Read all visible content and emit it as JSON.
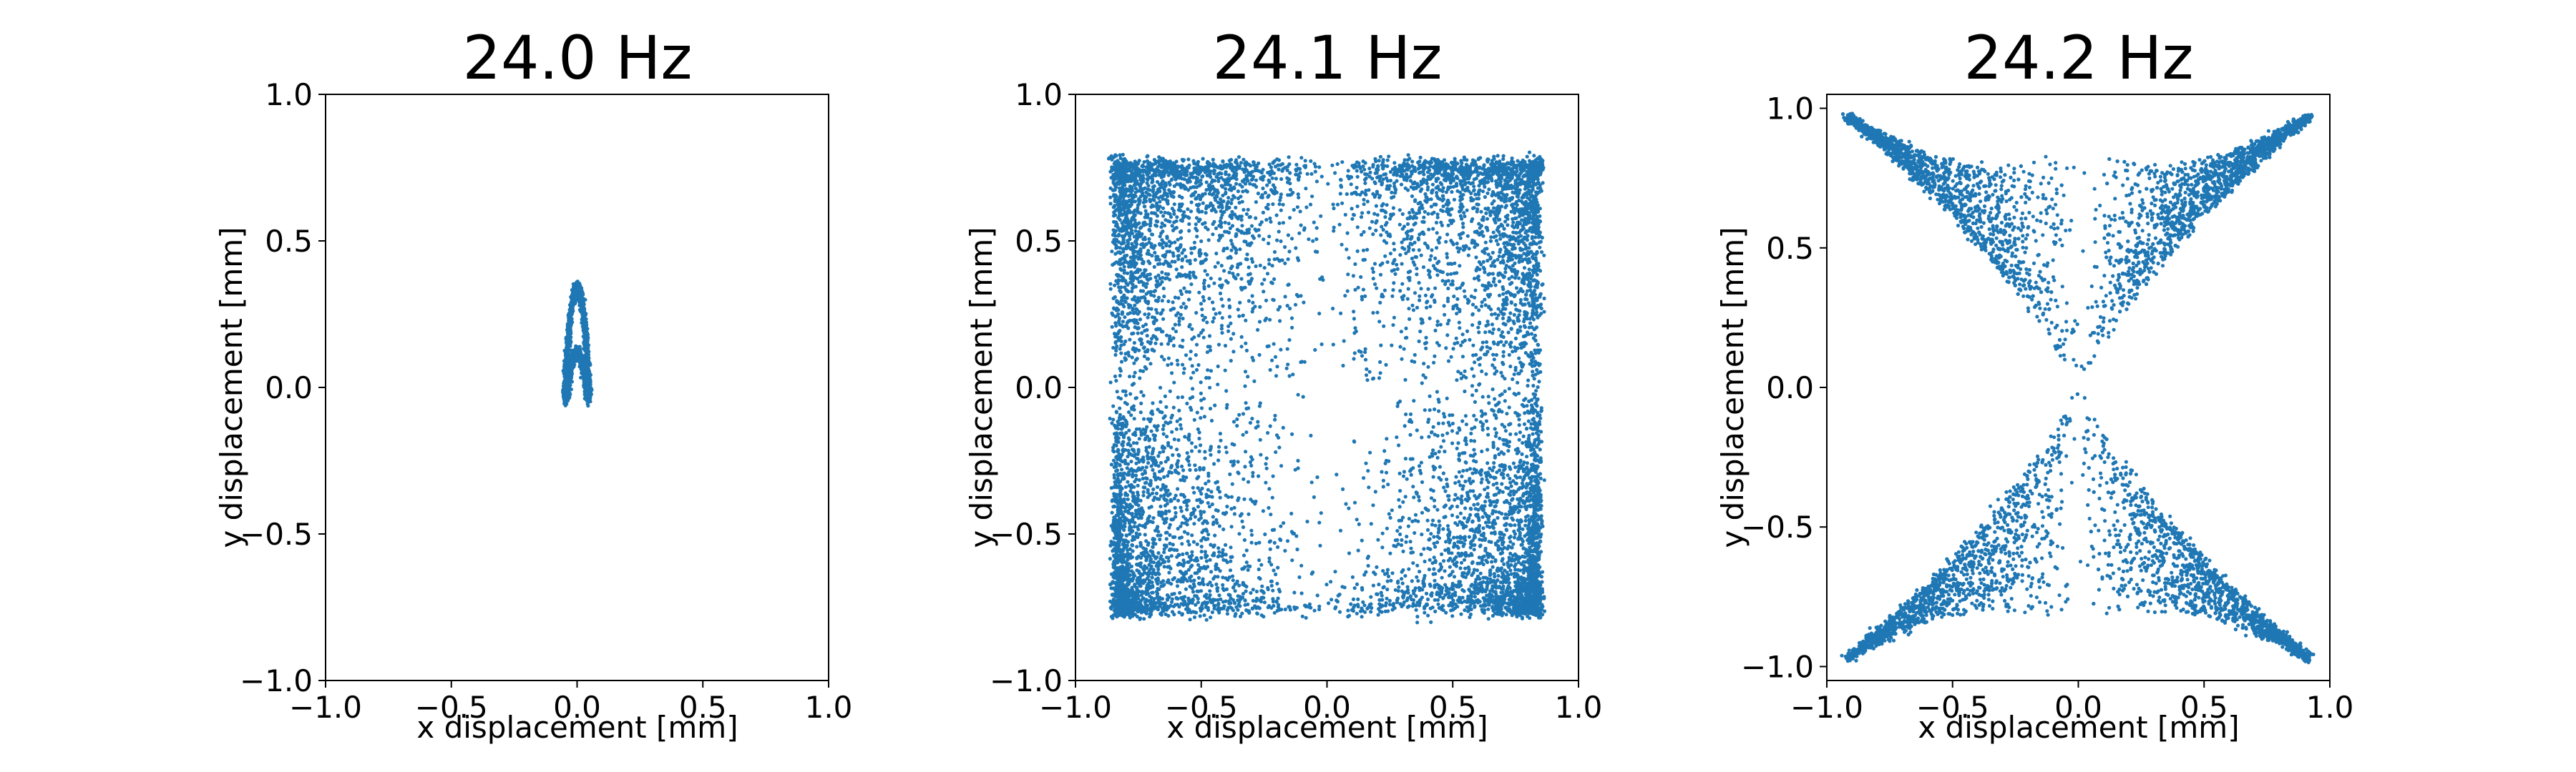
{
  "colors": {
    "series": "#1f77b4",
    "axis": "#000000",
    "background": "#ffffff"
  },
  "chart_data": [
    {
      "type": "scatter",
      "title": "24.0 Hz",
      "xlabel": "x displacement [mm]",
      "ylabel": "y displacement [mm]",
      "xlim": [
        -1.0,
        1.0
      ],
      "ylim": [
        -1.0,
        1.0
      ],
      "xticks": [
        -1.0,
        -0.5,
        0.0,
        0.5,
        1.0
      ],
      "yticks": [
        -1.0,
        -0.5,
        0.0,
        0.5,
        1.0
      ],
      "xtick_labels": [
        "−1.0",
        "−0.5",
        "0.0",
        "0.5",
        "1.0"
      ],
      "ytick_labels": [
        "−1.0",
        "−0.5",
        "0.0",
        "0.5",
        "1.0"
      ],
      "grid": false,
      "series": [
        {
          "pattern": "narrow-figure-eight",
          "x_extent": [
            -0.05,
            0.05
          ],
          "y_extent": [
            -0.14,
            0.35
          ]
        }
      ]
    },
    {
      "type": "scatter",
      "title": "24.1 Hz",
      "xlabel": "x displacement [mm]",
      "ylabel": "y displacement [mm]",
      "xlim": [
        -1.0,
        1.0
      ],
      "ylim": [
        -1.0,
        1.0
      ],
      "xticks": [
        -1.0,
        -0.5,
        0.0,
        0.5,
        1.0
      ],
      "yticks": [
        -1.0,
        -0.5,
        0.0,
        0.5,
        1.0
      ],
      "xtick_labels": [
        "−1.0",
        "−0.5",
        "0.0",
        "0.5",
        "1.0"
      ],
      "ytick_labels": [
        "−1.0",
        "−0.5",
        "0.0",
        "0.5",
        "1.0"
      ],
      "grid": false,
      "series": [
        {
          "pattern": "four-lobed-quasi-periodic",
          "x_extent": [
            -0.85,
            0.85
          ],
          "y_extent": [
            -0.78,
            0.78
          ]
        }
      ]
    },
    {
      "type": "scatter",
      "title": "24.2 Hz",
      "xlabel": "x displacement [mm]",
      "ylabel": "y displacement [mm]",
      "xlim": [
        -1.0,
        1.0
      ],
      "ylim": [
        -1.05,
        1.05
      ],
      "xticks": [
        -1.0,
        -0.5,
        0.0,
        0.5,
        1.0
      ],
      "yticks": [
        -1.0,
        -0.5,
        0.0,
        0.5,
        1.0
      ],
      "xtick_labels": [
        "−1.0",
        "−0.5",
        "0.0",
        "0.5",
        "1.0"
      ],
      "ytick_labels": [
        "−1.0",
        "−0.5",
        "0.0",
        "0.5",
        "1.0"
      ],
      "grid": false,
      "series": [
        {
          "pattern": "hourglass",
          "x_extent": [
            -0.92,
            0.92
          ],
          "y_extent": [
            -0.97,
            0.97
          ]
        }
      ]
    }
  ]
}
